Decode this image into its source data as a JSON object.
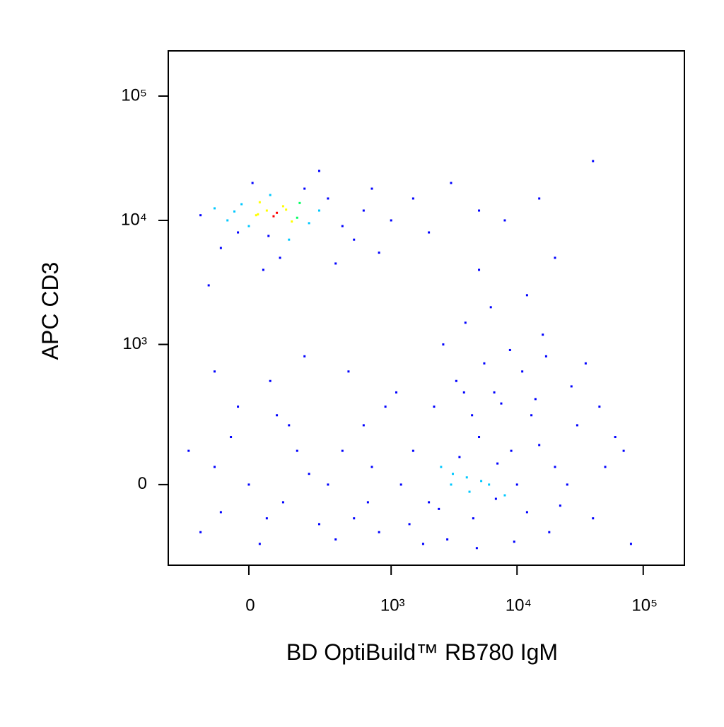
{
  "chart_data": {
    "type": "scatter",
    "x_label": "BD OptiBuild™ RB780 IgM",
    "y_label": "APC CD3",
    "xscale": "biexponential",
    "yscale": "biexponential",
    "xlim": [
      -309,
      212000
    ],
    "ylim": [
      -317,
      231000
    ],
    "xticks": [
      0,
      {
        "value": 1000,
        "label": "10³"
      },
      {
        "value": 10000,
        "label": "10⁴"
      },
      {
        "value": 100000,
        "label": "10⁵"
      }
    ],
    "yticks": [
      0,
      {
        "value": 1000,
        "label": "10³"
      },
      {
        "value": 10000,
        "label": "10⁴"
      },
      {
        "value": 100000,
        "label": "10⁵"
      }
    ],
    "color_scale": [
      "#0000ff",
      "#00c8ff",
      "#00ff60",
      "#ffff00",
      "#ff0000"
    ],
    "x": [
      20,
      50,
      -60,
      100,
      0,
      80,
      150,
      -100,
      30,
      200,
      -30,
      60,
      120,
      250,
      -150,
      10,
      300,
      90,
      -80,
      400,
      600,
      40,
      180,
      500,
      1000,
      700,
      -20,
      70,
      110,
      25,
      130,
      -40,
      55,
      160,
      350,
      800,
      2000,
      5000,
      1500,
      250,
      -120,
      0,
      -100,
      50,
      150,
      -150,
      80,
      -50,
      100,
      200,
      -200,
      30,
      -80,
      120,
      250,
      -30,
      60,
      180,
      -100,
      300,
      400,
      500,
      600,
      700,
      800,
      900,
      450,
      650,
      350,
      1200,
      1500,
      2000,
      2500,
      3000,
      3500,
      4000,
      4500,
      5000,
      6000,
      7000,
      8000,
      9000,
      10000,
      12000,
      15000,
      18000,
      20000,
      25000,
      30000,
      40000,
      50000,
      60000,
      2200,
      3300,
      4400,
      5500,
      6600,
      8800,
      11000,
      14000,
      1800,
      2800,
      3800,
      4800,
      7500,
      9500,
      13000,
      17000,
      22000,
      27000,
      1100,
      1400,
      2600,
      3900,
      6200,
      16000,
      35000,
      70000,
      80000,
      45000,
      5200,
      3100,
      4200,
      2400,
      6800,
      40000,
      8000,
      20000,
      15000,
      3000,
      5000,
      12000
    ],
    "values": [
      11000,
      12000,
      10000,
      13000,
      9000,
      11500,
      10500,
      12500,
      14000,
      9500,
      8000,
      16000,
      7000,
      12000,
      11000,
      20000,
      15000,
      5000,
      6000,
      9000,
      12000,
      4000,
      18000,
      7000,
      10000,
      18000,
      13500,
      10800,
      12200,
      11200,
      9800,
      11800,
      7500,
      13800,
      4500,
      5500,
      8000,
      12000,
      15000,
      25000,
      3000,
      0,
      50,
      -100,
      100,
      -150,
      250,
      150,
      -50,
      30,
      100,
      -200,
      -80,
      200,
      -120,
      300,
      500,
      800,
      600,
      0,
      100,
      -100,
      200,
      50,
      -150,
      300,
      600,
      -50,
      -180,
      0,
      100,
      -50,
      50,
      0,
      80,
      20,
      -100,
      150,
      0,
      60,
      -30,
      100,
      0,
      -80,
      120,
      -150,
      50,
      0,
      200,
      -100,
      50,
      150,
      300,
      500,
      250,
      700,
      400,
      900,
      600,
      350,
      -200,
      -180,
      400,
      -220,
      320,
      -190,
      250,
      800,
      -60,
      450,
      400,
      -120,
      1000,
      1500,
      2000,
      1200,
      700,
      100,
      -200,
      300,
      10,
      30,
      -20,
      -70,
      -40,
      30000,
      10000,
      5000,
      15000,
      20000,
      4000,
      2500
    ]
  }
}
